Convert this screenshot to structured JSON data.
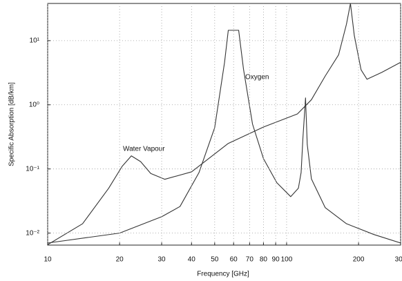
{
  "chart_data": {
    "type": "line",
    "x_label": "Frequency [GHz]",
    "y_label": "Specific Absorption [dB/km]",
    "x_log": true,
    "y_log": true,
    "grid": true,
    "xlim": [
      10,
      300
    ],
    "xticks": [
      10,
      20,
      30,
      40,
      50,
      60,
      70,
      80,
      90,
      100,
      200,
      300
    ],
    "ylim": [
      0.0065,
      38
    ],
    "yticks": [
      {
        "value": 0.01,
        "label": "10⁻²"
      },
      {
        "value": 0.1,
        "label": "10⁻¹"
      },
      {
        "value": 1,
        "label": "10⁰"
      },
      {
        "value": 10,
        "label": "10¹"
      }
    ],
    "annotations": [
      "Water Vapour",
      "Oxygen"
    ],
    "series": [
      {
        "name": "Water Vapour",
        "color": "#333333",
        "x": [
          10,
          14,
          18,
          20.5,
          22.4,
          24.5,
          27,
          30.9,
          40,
          57,
          80,
          111,
          127,
          145,
          165,
          178,
          185,
          192,
          205,
          217,
          250,
          300
        ],
        "values": [
          0.0066,
          0.014,
          0.05,
          0.11,
          0.16,
          0.13,
          0.085,
          0.069,
          0.09,
          0.25,
          0.45,
          0.72,
          1.2,
          2.8,
          6,
          18,
          38,
          12,
          3.5,
          2.5,
          3.2,
          4.6
        ]
      },
      {
        "name": "Oxygen",
        "color": "#333333",
        "x": [
          10,
          20,
          30,
          35.8,
          43,
          50,
          55,
          57,
          63,
          66,
          72,
          80,
          91,
          104,
          112,
          115,
          117,
          120,
          122,
          127,
          145,
          178,
          232,
          300
        ],
        "values": [
          0.007,
          0.01,
          0.018,
          0.026,
          0.088,
          0.44,
          4.6,
          14.5,
          14.5,
          3.6,
          0.5,
          0.145,
          0.061,
          0.037,
          0.05,
          0.088,
          0.3,
          1.28,
          0.24,
          0.07,
          0.025,
          0.014,
          0.0095,
          0.007
        ]
      }
    ]
  }
}
